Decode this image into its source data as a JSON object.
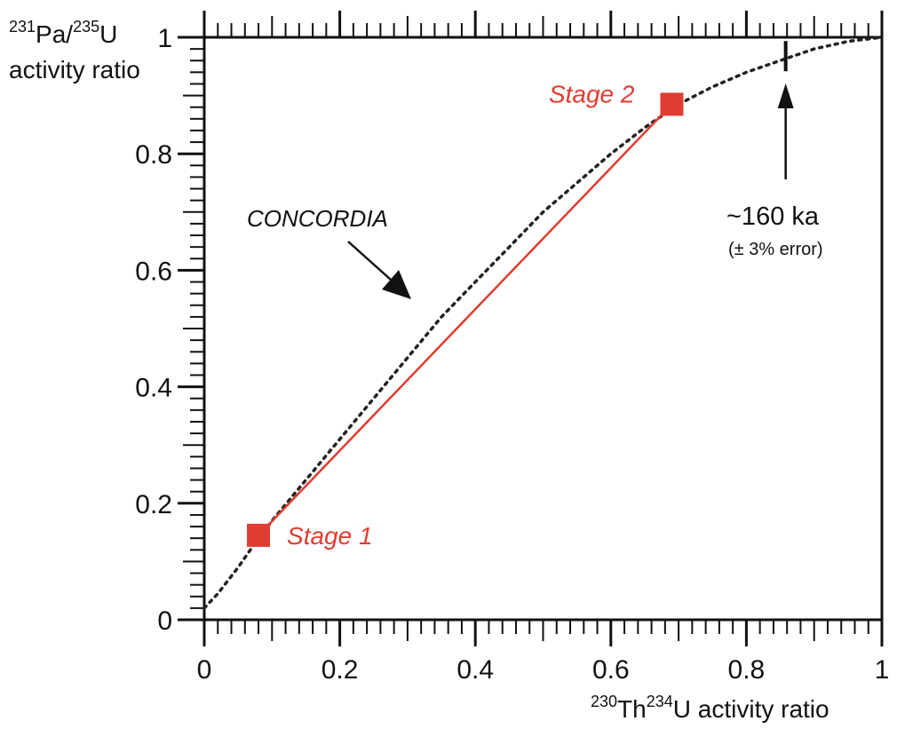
{
  "chart_data": {
    "type": "line",
    "x_axis": {
      "title_sup_a": "230",
      "title_main_a": "Th",
      "title_sup_b": "234",
      "title_main_b": "U activity ratio",
      "ticks": [
        0,
        0.2,
        0.4,
        0.6,
        0.8,
        1
      ],
      "tick_labels": [
        "0",
        "0.2",
        "0.4",
        "0.6",
        "0.8",
        "1"
      ],
      "range": [
        0,
        1
      ]
    },
    "y_axis": {
      "title_sup_a": "231",
      "title_main_a": "Pa/",
      "title_sup_b": "235",
      "title_main_b": "U",
      "title_line2": "activity ratio",
      "ticks": [
        0,
        0.2,
        0.4,
        0.6,
        0.8,
        1
      ],
      "tick_labels": [
        "0",
        "0.2",
        "0.4",
        "0.6",
        "0.8",
        "1"
      ],
      "range": [
        0,
        1
      ]
    },
    "series": [
      {
        "name": "CONCORDIA",
        "style": "dotted",
        "color": "#222222",
        "points": [
          [
            0.0,
            0.02
          ],
          [
            0.02,
            0.045
          ],
          [
            0.05,
            0.09
          ],
          [
            0.08,
            0.14
          ],
          [
            0.1,
            0.17
          ],
          [
            0.15,
            0.24
          ],
          [
            0.2,
            0.31
          ],
          [
            0.25,
            0.38
          ],
          [
            0.3,
            0.45
          ],
          [
            0.35,
            0.52
          ],
          [
            0.4,
            0.58
          ],
          [
            0.45,
            0.64
          ],
          [
            0.5,
            0.7
          ],
          [
            0.55,
            0.75
          ],
          [
            0.6,
            0.8
          ],
          [
            0.65,
            0.845
          ],
          [
            0.7,
            0.885
          ],
          [
            0.75,
            0.915
          ],
          [
            0.8,
            0.94
          ],
          [
            0.85,
            0.96
          ],
          [
            0.9,
            0.98
          ],
          [
            0.95,
            0.993
          ],
          [
            1.0,
            1.0
          ]
        ]
      },
      {
        "name": "",
        "style": "solid",
        "color": "#e03c31",
        "points": [
          [
            0.08,
            0.145
          ],
          [
            0.69,
            0.885
          ]
        ]
      }
    ],
    "markers": [
      {
        "label": "Stage 1",
        "x": 0.08,
        "y": 0.145,
        "color": "#e03c31"
      },
      {
        "label": "Stage 2",
        "x": 0.69,
        "y": 0.885,
        "color": "#e03c31"
      }
    ],
    "annotations": {
      "concordia_label": "CONCORDIA",
      "age_label": "~160 ka",
      "error_label": "(± 3% error)",
      "age_x": 0.858,
      "age_y": 0.96
    }
  }
}
